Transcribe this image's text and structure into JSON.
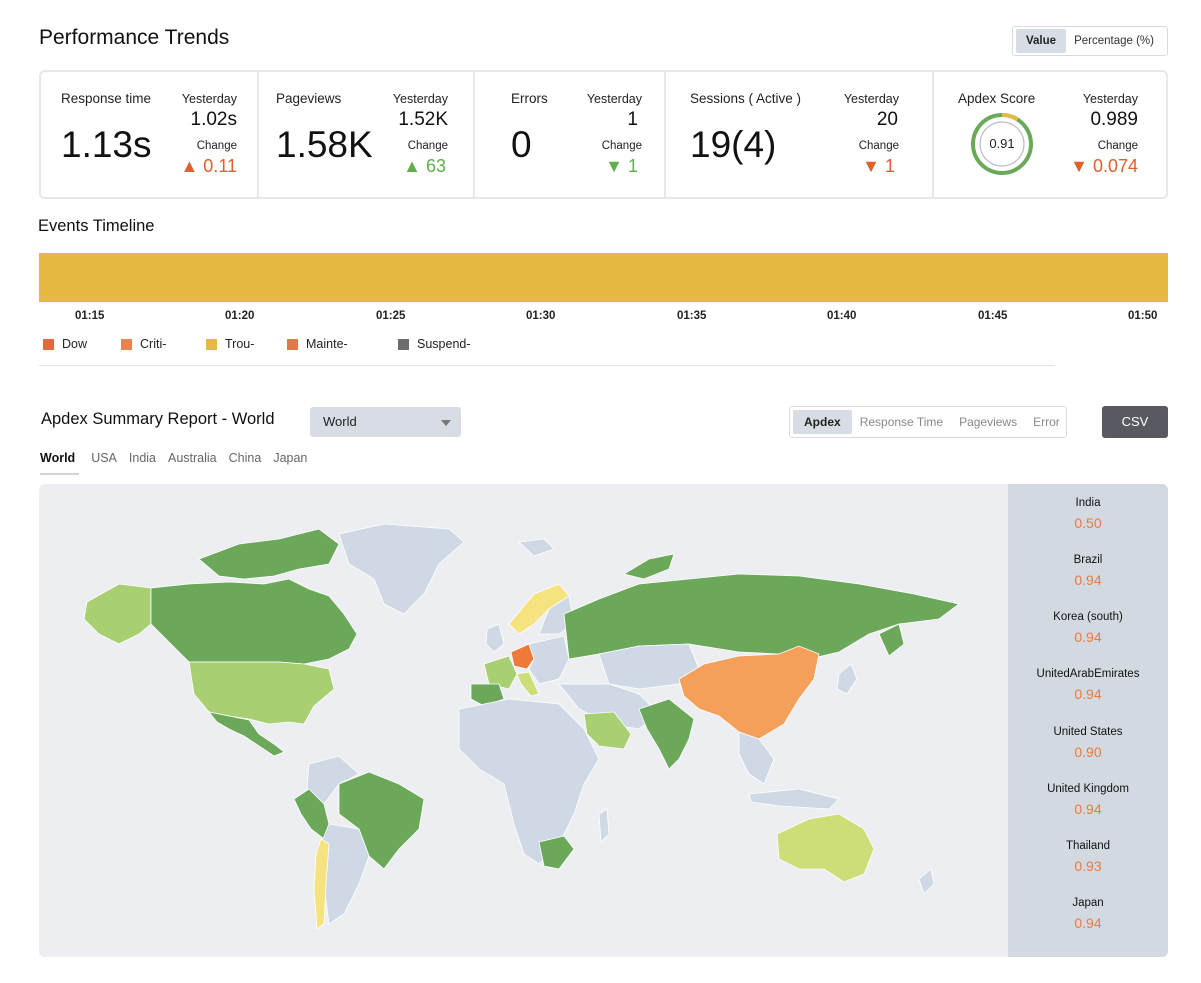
{
  "header": {
    "title": "Performance Trends",
    "toggle": {
      "value_label": "Value",
      "percentage_label": "Percentage (%)"
    }
  },
  "kpis": {
    "response_time": {
      "label": "Response time",
      "value": "1.13s",
      "yesterday_label": "Yesterday",
      "yesterday_value": "1.02s",
      "change_label": "Change",
      "change_value": "▲ 0.11"
    },
    "pageviews": {
      "label": "Pageviews",
      "value": "1.58K",
      "yesterday_label": "Yesterday",
      "yesterday_value": "1.52K",
      "change_label": "Change",
      "change_value": "▲ 63"
    },
    "errors": {
      "label": "Errors",
      "value": "0",
      "yesterday_label": "Yesterday",
      "yesterday_value": "1",
      "change_label": "Change",
      "change_value": "▼ 1"
    },
    "sessions": {
      "label": "Sessions ( Active )",
      "value": "19(4)",
      "yesterday_label": "Yesterday",
      "yesterday_value": "20",
      "change_label": "Change",
      "change_value": "▼ 1"
    },
    "apdex": {
      "label": "Apdex Score",
      "value": "0.91",
      "score": 0.91,
      "yesterday_label": "Yesterday",
      "yesterday_value": "0.989",
      "change_label": "Change",
      "change_value": "▼ 0.074"
    }
  },
  "timeline": {
    "title": "Events Timeline",
    "ticks": [
      "01:15",
      "01:20",
      "01:25",
      "01:30",
      "01:35",
      "01:40",
      "01:45",
      "01:50"
    ],
    "bar_color": "#e6b942",
    "legend": [
      {
        "label": "Dow",
        "color": "#e06a3e"
      },
      {
        "label": "Criti-",
        "color": "#e9834b"
      },
      {
        "label": "Trou-",
        "color": "#e6b942"
      },
      {
        "label": "Mainte-",
        "color": "#e07a4a"
      },
      {
        "label": "Suspend-",
        "color": "#6b6d70"
      }
    ]
  },
  "apdex_summary": {
    "title": "Apdex Summary Report - World",
    "select_value": "World",
    "metric_tabs": [
      "Apdex",
      "Response Time",
      "Pageviews",
      "Error"
    ],
    "csv_label": "CSV",
    "region_tabs": [
      "World",
      "USA",
      "India",
      "Australia",
      "China",
      "Japan"
    ],
    "countries": [
      {
        "name": "India",
        "value": "0.50"
      },
      {
        "name": "Brazil",
        "value": "0.94"
      },
      {
        "name": "Korea (south)",
        "value": "0.94"
      },
      {
        "name": "UnitedArabEmirates",
        "value": "0.94"
      },
      {
        "name": "United States",
        "value": "0.90"
      },
      {
        "name": "United Kingdom",
        "value": "0.94"
      },
      {
        "name": "Thailand",
        "value": "0.93"
      },
      {
        "name": "Japan",
        "value": "0.94"
      }
    ],
    "map_colors": {
      "ocean": "#eceef1",
      "no_data": "#cfd9e6",
      "excellent": "#6ba85a",
      "good": "#a8cf72",
      "fair": "#cdde78",
      "poor": "#f5e37f",
      "warn": "#f5a05a",
      "bad": "#ee7a3a"
    }
  }
}
